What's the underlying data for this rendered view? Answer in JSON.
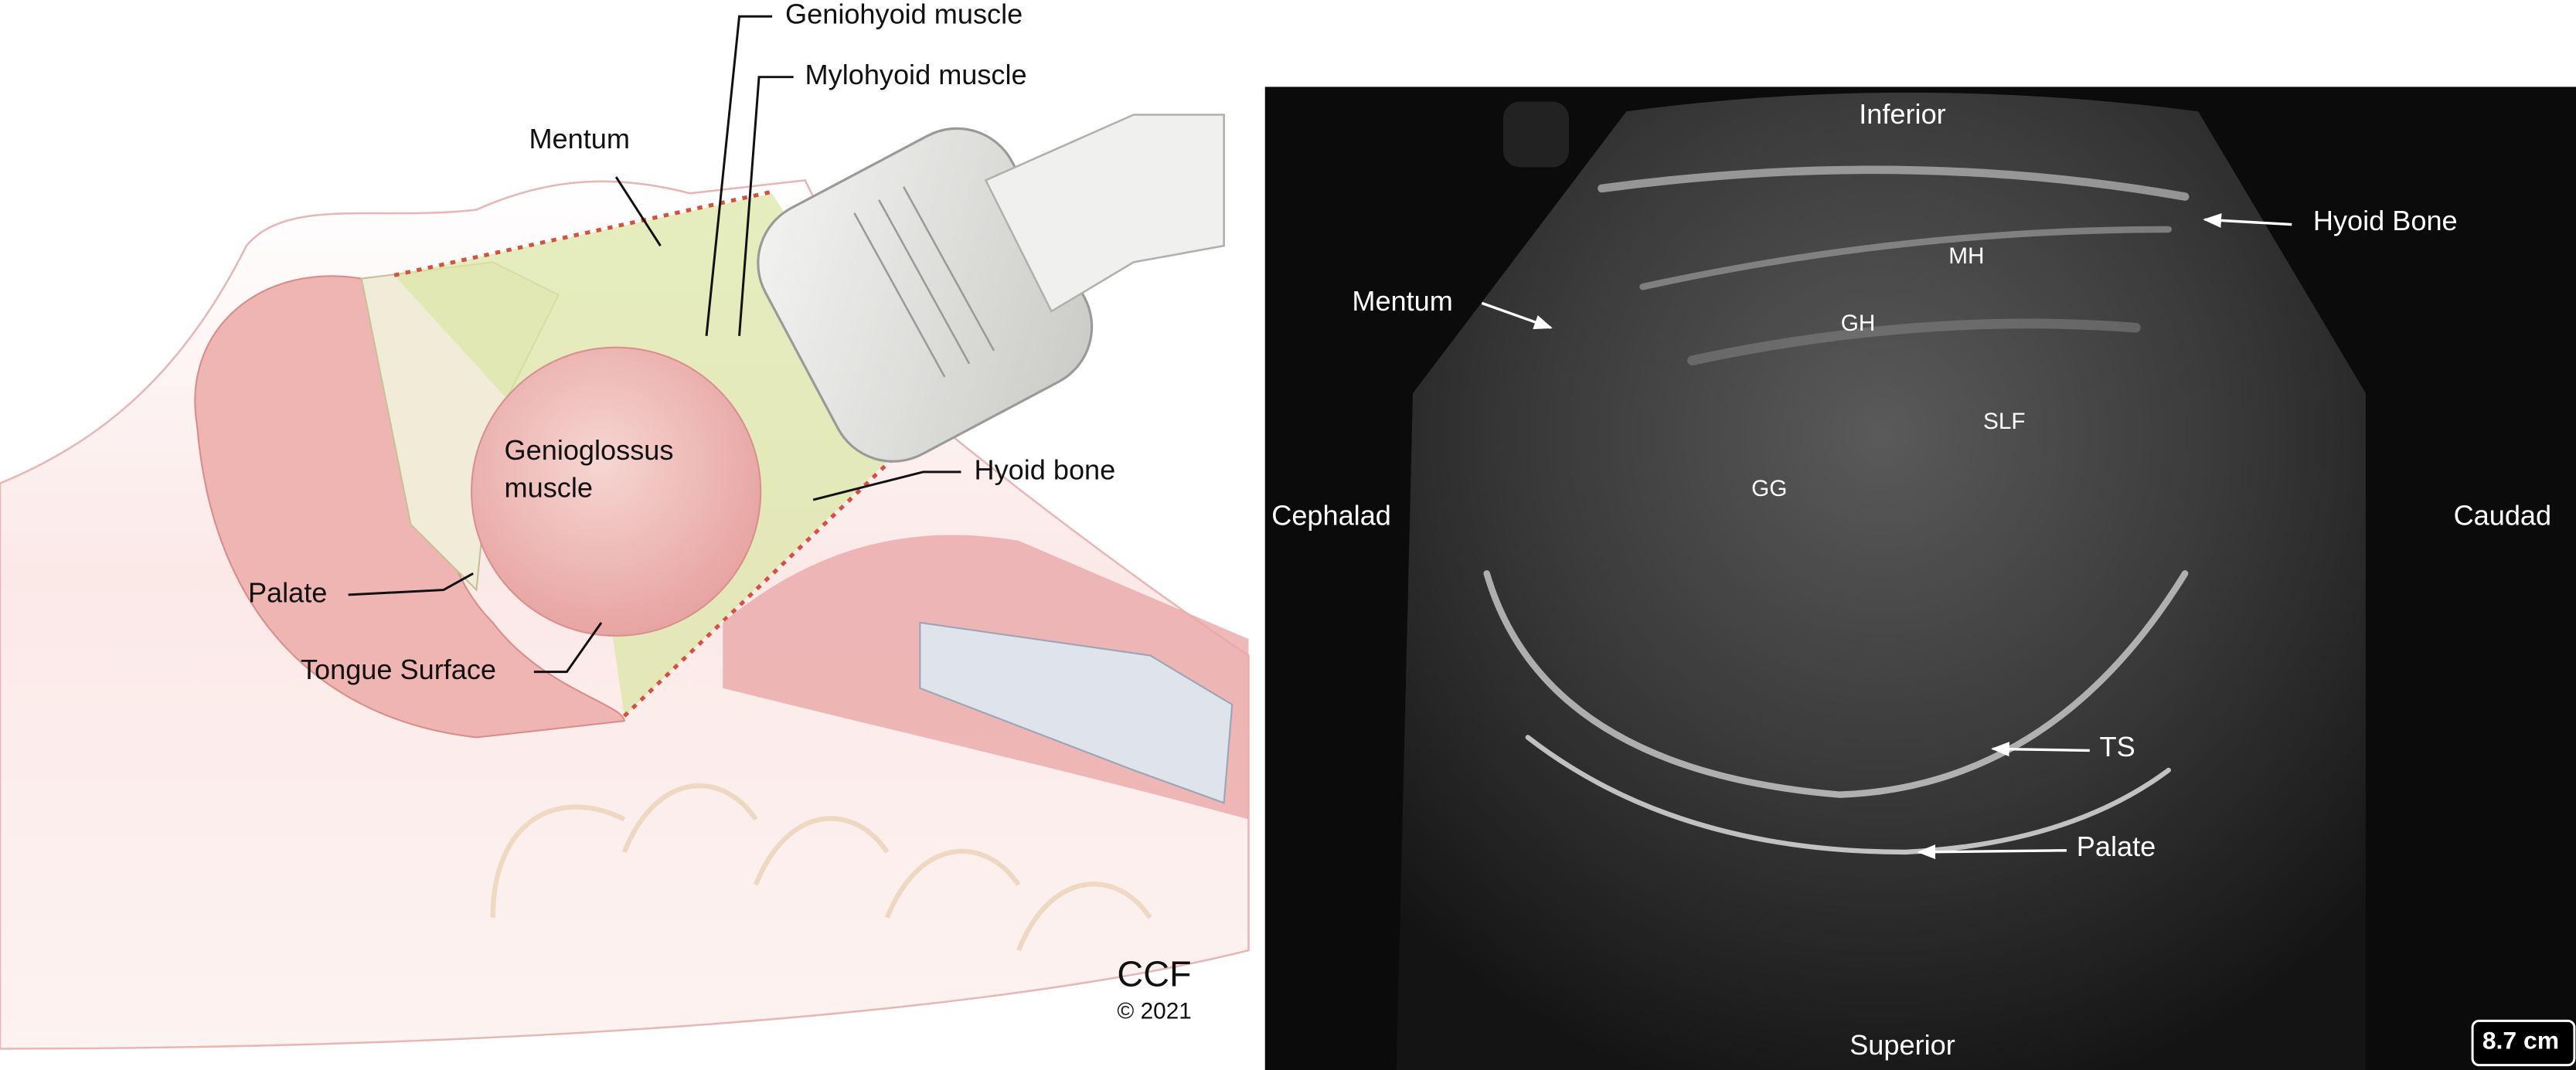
{
  "illustration": {
    "labels": {
      "geniohyoid": "Geniohyoid muscle",
      "mylohyoid": "Mylohyoid muscle",
      "mentum": "Mentum",
      "genioglossus": [
        "Genioglossus",
        "muscle"
      ],
      "hyoid": "Hyoid bone",
      "palate": "Palate",
      "tongue_surface": "Tongue Surface"
    },
    "credit": {
      "org": "CCF",
      "year": "© 2021"
    }
  },
  "ultrasound": {
    "orientation": {
      "top": "Inferior",
      "bottom": "Superior",
      "left": "Cephalad",
      "right": "Caudad"
    },
    "labels": {
      "mentum": "Mentum",
      "hyoid": "Hyoid Bone",
      "mh": "MH",
      "gh": "GH",
      "slf": "SLF",
      "gg": "GG",
      "ts": "TS",
      "palate": "Palate"
    },
    "depth": "8.7 cm"
  }
}
